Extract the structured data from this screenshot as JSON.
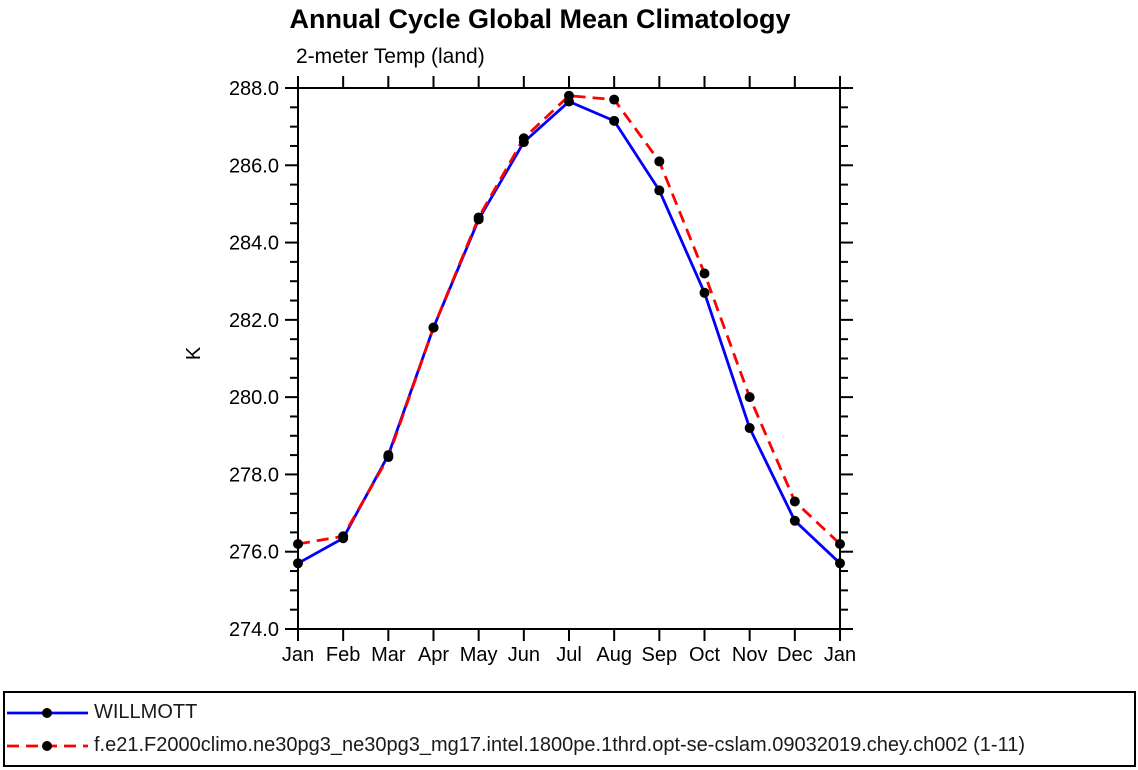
{
  "page": {
    "background": "#ffffff",
    "axis_color": "#000000",
    "marker_color": "#000000"
  },
  "chart_data": {
    "type": "line",
    "title": "Annual Cycle Global Mean Climatology",
    "subtitle": "2-meter Temp (land)",
    "ylabel": "K",
    "xlabel": "",
    "grid": false,
    "legend_position": "bottom-box",
    "categories": [
      "Jan",
      "Feb",
      "Mar",
      "Apr",
      "May",
      "Jun",
      "Jul",
      "Aug",
      "Sep",
      "Oct",
      "Nov",
      "Dec",
      "Jan"
    ],
    "ylim": [
      274.0,
      288.0
    ],
    "ytick_major": 2.0,
    "ytick_minor": 0.5,
    "ytick_label_format": "one-decimal",
    "series": [
      {
        "name": "WILLMOTT",
        "color": "#0000ff",
        "style": "solid",
        "marker": "filled-black-circle",
        "values": [
          275.7,
          276.35,
          278.5,
          281.8,
          284.6,
          286.6,
          287.65,
          287.15,
          285.35,
          282.7,
          279.2,
          276.8,
          275.7
        ]
      },
      {
        "name": "f.e21.F2000climo.ne30pg3_ne30pg3_mg17.intel.1800pe.1thrd.opt-se-cslam.09032019.chey.ch002 (1-11)",
        "color": "#ff0000",
        "style": "dashed",
        "marker": "filled-black-circle",
        "values": [
          276.2,
          276.4,
          278.45,
          281.8,
          284.65,
          286.7,
          287.8,
          287.7,
          286.1,
          283.2,
          280.0,
          277.3,
          276.2
        ]
      }
    ]
  }
}
